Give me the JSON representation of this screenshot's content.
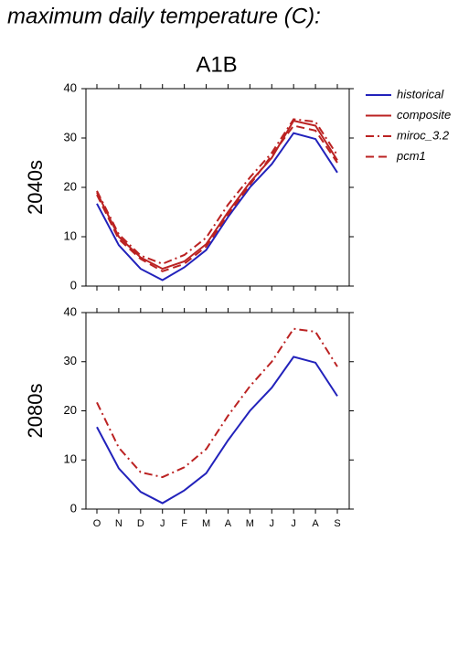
{
  "title": "maximum daily temperature (C):",
  "chart_data": [
    {
      "type": "line",
      "title": "A1B",
      "y_label": "2040s",
      "categories": [
        "O",
        "N",
        "D",
        "J",
        "F",
        "M",
        "A",
        "M",
        "J",
        "J",
        "A",
        "S"
      ],
      "ylim": [
        0,
        40
      ],
      "yticks": [
        0,
        10,
        20,
        30,
        40
      ],
      "series": [
        {
          "name": "historical",
          "color": "#2222bb",
          "dash": "solid",
          "values": [
            16.7,
            8.3,
            3.5,
            1.2,
            3.8,
            7.3,
            14,
            20,
            24.7,
            31,
            29.8,
            23
          ]
        },
        {
          "name": "composite",
          "color": "#bb2222",
          "dash": "solid",
          "values": [
            19,
            10,
            5.8,
            3.5,
            5,
            8.5,
            15,
            21,
            26,
            33.5,
            32.5,
            25.5
          ]
        },
        {
          "name": "miroc_3.2",
          "color": "#bb2222",
          "dash": "dashdot",
          "values": [
            19.3,
            10.5,
            6.2,
            4.5,
            6.3,
            9.8,
            16.5,
            22,
            27,
            33.8,
            33.3,
            26.5
          ]
        },
        {
          "name": "pcm1",
          "color": "#bb2222",
          "dash": "dashed",
          "values": [
            18.5,
            9.5,
            5.5,
            3,
            4.5,
            8,
            14.5,
            20.5,
            26.5,
            32.5,
            31.5,
            25
          ]
        }
      ]
    },
    {
      "type": "line",
      "y_label": "2080s",
      "categories": [
        "O",
        "N",
        "D",
        "J",
        "F",
        "M",
        "A",
        "M",
        "J",
        "J",
        "A",
        "S"
      ],
      "ylim": [
        0,
        40
      ],
      "yticks": [
        0,
        10,
        20,
        30,
        40
      ],
      "series": [
        {
          "color": "#2222bb",
          "dash": "solid",
          "values": [
            16.7,
            8.3,
            3.5,
            1.2,
            3.8,
            7.3,
            14,
            20,
            24.7,
            31,
            29.8,
            23
          ]
        },
        {
          "color": "#bb2222",
          "dash": "dashdot",
          "values": [
            21.7,
            12.5,
            7.5,
            6.5,
            8.5,
            12.2,
            19,
            25,
            30,
            36.7,
            36.1,
            29
          ]
        }
      ]
    }
  ]
}
